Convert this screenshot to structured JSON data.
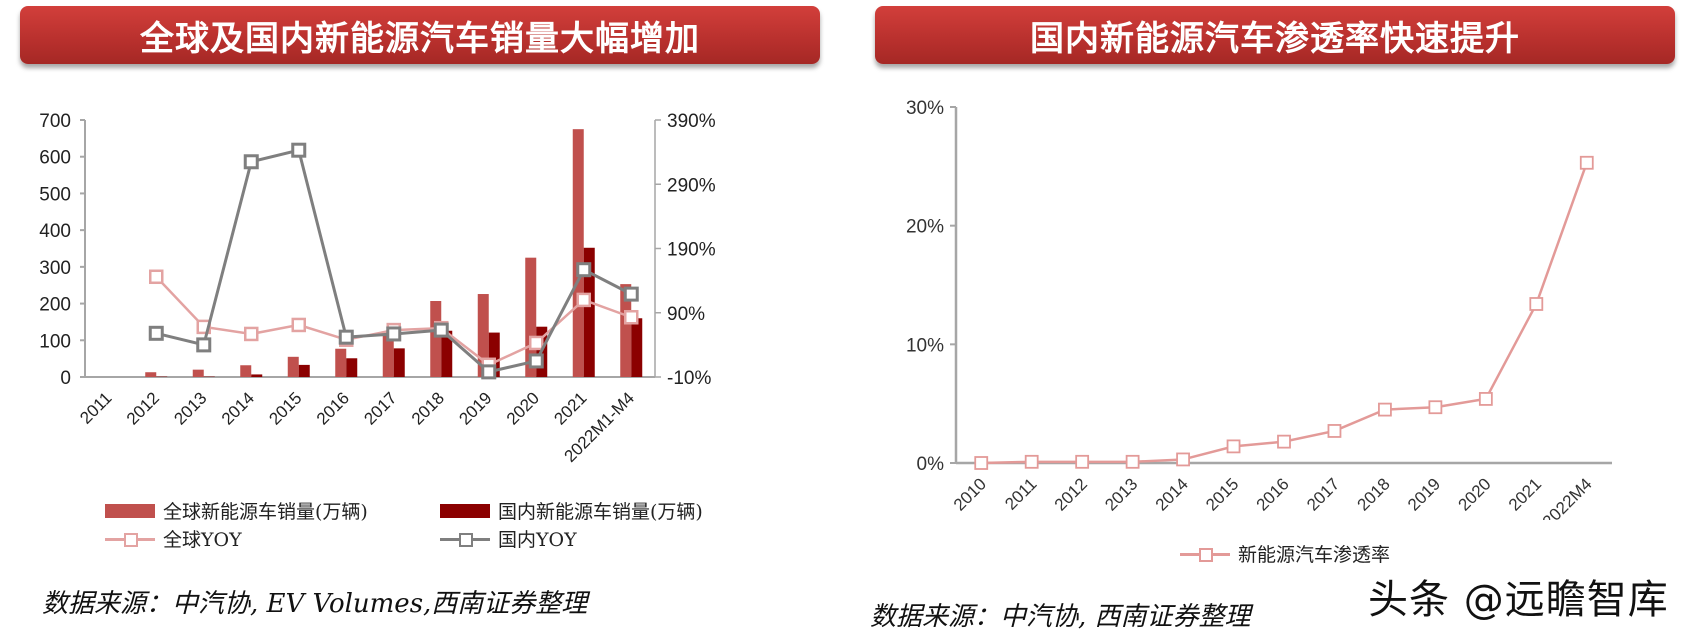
{
  "left_panel": {
    "title": "全球及国内新能源汽车销量大幅增加",
    "source": "数据来源：中汽协, EV Volumes,西南证券整理",
    "legend": {
      "global_sales": "全球新能源车销量(万辆)",
      "domestic_sales": "国内新能源车销量(万辆)",
      "global_yoy": "全球YOY",
      "domestic_yoy": "国内YOY"
    }
  },
  "right_panel": {
    "title": "国内新能源汽车渗透率快速提升",
    "source": "数据来源：中汽协, 西南证券整理",
    "legend": {
      "penetration": "新能源汽车渗透率"
    }
  },
  "watermark": "头条 @远瞻智库",
  "colors": {
    "banner": "#c0392b",
    "global_bar": "#c0504d",
    "domestic_bar": "#8b0000",
    "global_yoy_line": "#e3a3a2",
    "domestic_yoy_line": "#7f7f7f",
    "penetration_line": "#e39a98"
  },
  "chart_data": [
    {
      "type": "bar+line",
      "title": "全球及国内新能源汽车销量大幅增加",
      "categories": [
        "2011",
        "2012",
        "2013",
        "2014",
        "2015",
        "2016",
        "2017",
        "2018",
        "2019",
        "2020",
        "2021",
        "2022M1-M4"
      ],
      "y_left": {
        "label": "万辆",
        "ticks": [
          0,
          100,
          200,
          300,
          400,
          500,
          600,
          700
        ],
        "range": [
          0,
          700
        ]
      },
      "y_right": {
        "label": "YOY",
        "ticks": [
          "-10%",
          "90%",
          "190%",
          "290%",
          "390%"
        ],
        "range": [
          -10,
          390
        ]
      },
      "series": [
        {
          "name": "全球新能源车销量(万辆)",
          "type": "bar",
          "axis": "left",
          "values": [
            null,
            13,
            20,
            32,
            55,
            77,
            123,
            207,
            226,
            325,
            675,
            253
          ]
        },
        {
          "name": "国内新能源车销量(万辆)",
          "type": "bar",
          "axis": "left",
          "values": [
            null,
            1,
            1,
            7,
            33,
            51,
            78,
            126,
            121,
            137,
            352,
            160
          ]
        },
        {
          "name": "全球YOY",
          "type": "line",
          "axis": "right",
          "unit": "%",
          "values": [
            null,
            146,
            68,
            57,
            71,
            48,
            63,
            66,
            9,
            43,
            110,
            83
          ]
        },
        {
          "name": "国内YOY",
          "type": "line",
          "axis": "right",
          "unit": "%",
          "values": [
            null,
            58,
            40,
            325,
            343,
            52,
            57,
            63,
            -2,
            15,
            157,
            119
          ]
        }
      ],
      "legend_position": "bottom",
      "grid": false
    },
    {
      "type": "line",
      "title": "国内新能源汽车渗透率快速提升",
      "categories": [
        "2010",
        "2011",
        "2012",
        "2013",
        "2014",
        "2015",
        "2016",
        "2017",
        "2018",
        "2019",
        "2020",
        "2021",
        "2022M4"
      ],
      "y": {
        "ticks": [
          "0%",
          "10%",
          "20%",
          "30%"
        ],
        "range": [
          0,
          30
        ]
      },
      "series": [
        {
          "name": "新能源汽车渗透率",
          "unit": "%",
          "values": [
            0.0,
            0.1,
            0.1,
            0.1,
            0.3,
            1.4,
            1.8,
            2.7,
            4.5,
            4.7,
            5.4,
            13.4,
            25.3
          ]
        }
      ],
      "legend_position": "bottom",
      "grid": false
    }
  ]
}
